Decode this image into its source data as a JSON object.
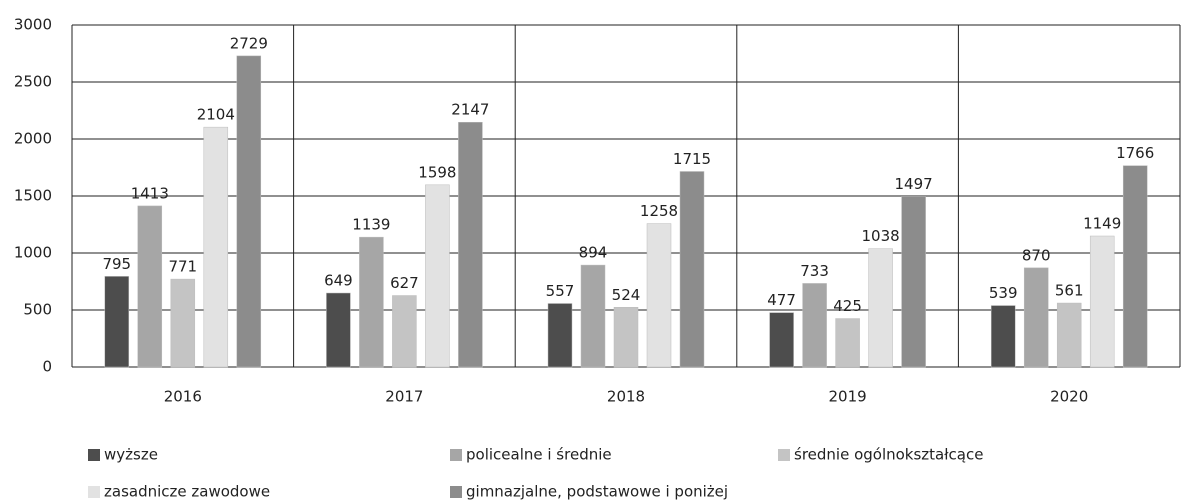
{
  "chart_data": {
    "type": "bar",
    "categories": [
      "2016",
      "2017",
      "2018",
      "2019",
      "2020"
    ],
    "series": [
      {
        "name": "wyższe",
        "color": "#4d4d4d",
        "values": [
          795,
          649,
          557,
          477,
          539
        ]
      },
      {
        "name": "policealne i średnie",
        "color": "#a6a6a6",
        "values": [
          1413,
          1139,
          894,
          733,
          870
        ]
      },
      {
        "name": "średnie ogólnokształcące",
        "color": "#c4c4c4",
        "values": [
          771,
          627,
          524,
          425,
          561
        ]
      },
      {
        "name": "zasadnicze zawodowe",
        "color": "#e2e2e2",
        "values": [
          2104,
          1598,
          1258,
          1038,
          1149
        ]
      },
      {
        "name": "gimnazjalne, podstawowe i poniżej",
        "color": "#8c8c8c",
        "values": [
          2729,
          2147,
          1715,
          1497,
          1766
        ]
      }
    ],
    "ylim": [
      0,
      3000
    ],
    "yticks": [
      0,
      500,
      1000,
      1500,
      2000,
      2500,
      3000
    ],
    "grid": true,
    "legend": "bottom"
  }
}
